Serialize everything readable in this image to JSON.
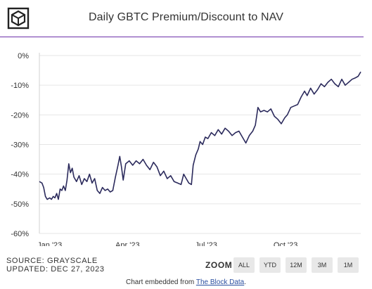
{
  "header": {
    "logo_icon": "the-block-cube-icon",
    "title": "Daily GBTC Premium/Discount to NAV"
  },
  "source": {
    "line1": "SOURCE: GRAYSCALE",
    "line2": "UPDATED: DEC 27, 2023"
  },
  "zoom": {
    "label": "ZOOM",
    "buttons": [
      "ALL",
      "YTD",
      "12M",
      "3M",
      "1M"
    ]
  },
  "footer": {
    "prefix": "Chart embedded from ",
    "link_text": "The Block Data",
    "suffix": "."
  },
  "colors": {
    "line": "#2b2a5c",
    "accent_rule": "#6b2fa8",
    "grid": "#e6e6e6"
  },
  "chart_data": {
    "type": "line",
    "title": "Daily GBTC Premium/Discount to NAV",
    "xlabel": "",
    "ylabel": "",
    "x_ticks": [
      "Jan '23",
      "Apr '23",
      "Jul '23",
      "Oct '23"
    ],
    "y_ticks": [
      "0%",
      "-10%",
      "-20%",
      "-30%",
      "-40%",
      "-50%",
      "-60%"
    ],
    "ylim": [
      -60,
      0
    ],
    "xlim": [
      "2022-12-20",
      "2023-12-27"
    ],
    "grid": true,
    "legend": "none",
    "series": [
      {
        "name": "",
        "points": [
          [
            "2022-12-20",
            -42.5
          ],
          [
            "2022-12-23",
            -43.0
          ],
          [
            "2022-12-25",
            -44.5
          ],
          [
            "2022-12-27",
            -47.5
          ],
          [
            "2022-12-29",
            -48.5
          ],
          [
            "2023-01-01",
            -48.0
          ],
          [
            "2023-01-03",
            -48.5
          ],
          [
            "2023-01-05",
            -47.5
          ],
          [
            "2023-01-07",
            -48.0
          ],
          [
            "2023-01-09",
            -46.5
          ],
          [
            "2023-01-11",
            -48.5
          ],
          [
            "2023-01-13",
            -45.0
          ],
          [
            "2023-01-15",
            -45.5
          ],
          [
            "2023-01-17",
            -44.0
          ],
          [
            "2023-01-19",
            -45.5
          ],
          [
            "2023-01-21",
            -42.0
          ],
          [
            "2023-01-23",
            -36.5
          ],
          [
            "2023-01-25",
            -39.5
          ],
          [
            "2023-01-27",
            -38.0
          ],
          [
            "2023-01-29",
            -41.0
          ],
          [
            "2023-02-01",
            -42.5
          ],
          [
            "2023-02-04",
            -40.5
          ],
          [
            "2023-02-07",
            -43.5
          ],
          [
            "2023-02-10",
            -41.5
          ],
          [
            "2023-02-13",
            -42.5
          ],
          [
            "2023-02-16",
            -40.0
          ],
          [
            "2023-02-19",
            -43.0
          ],
          [
            "2023-02-22",
            -41.5
          ],
          [
            "2023-02-25",
            -45.5
          ],
          [
            "2023-02-28",
            -46.5
          ],
          [
            "2023-03-03",
            -44.5
          ],
          [
            "2023-03-06",
            -45.5
          ],
          [
            "2023-03-09",
            -45.0
          ],
          [
            "2023-03-12",
            -46.0
          ],
          [
            "2023-03-15",
            -45.5
          ],
          [
            "2023-03-18",
            -41.0
          ],
          [
            "2023-03-21",
            -37.0
          ],
          [
            "2023-03-23",
            -34.0
          ],
          [
            "2023-03-25",
            -37.5
          ],
          [
            "2023-03-27",
            -42.0
          ],
          [
            "2023-03-30",
            -36.5
          ],
          [
            "2023-04-03",
            -35.5
          ],
          [
            "2023-04-07",
            -37.0
          ],
          [
            "2023-04-11",
            -35.5
          ],
          [
            "2023-04-15",
            -36.5
          ],
          [
            "2023-04-19",
            -35.0
          ],
          [
            "2023-04-23",
            -37.0
          ],
          [
            "2023-04-27",
            -38.5
          ],
          [
            "2023-05-01",
            -36.0
          ],
          [
            "2023-05-05",
            -37.5
          ],
          [
            "2023-05-09",
            -40.5
          ],
          [
            "2023-05-13",
            -39.0
          ],
          [
            "2023-05-17",
            -41.5
          ],
          [
            "2023-05-21",
            -40.5
          ],
          [
            "2023-05-25",
            -42.5
          ],
          [
            "2023-05-29",
            -43.0
          ],
          [
            "2023-06-02",
            -43.5
          ],
          [
            "2023-06-05",
            -40.0
          ],
          [
            "2023-06-08",
            -41.5
          ],
          [
            "2023-06-11",
            -43.0
          ],
          [
            "2023-06-14",
            -43.5
          ],
          [
            "2023-06-16",
            -37.0
          ],
          [
            "2023-06-19",
            -33.5
          ],
          [
            "2023-06-22",
            -31.5
          ],
          [
            "2023-06-24",
            -29.0
          ],
          [
            "2023-06-27",
            -30.0
          ],
          [
            "2023-06-30",
            -27.5
          ],
          [
            "2023-07-03",
            -28.0
          ],
          [
            "2023-07-07",
            -26.0
          ],
          [
            "2023-07-11",
            -27.0
          ],
          [
            "2023-07-15",
            -25.0
          ],
          [
            "2023-07-19",
            -26.5
          ],
          [
            "2023-07-23",
            -24.5
          ],
          [
            "2023-07-27",
            -25.5
          ],
          [
            "2023-07-31",
            -27.0
          ],
          [
            "2023-08-04",
            -26.0
          ],
          [
            "2023-08-08",
            -25.5
          ],
          [
            "2023-08-12",
            -27.5
          ],
          [
            "2023-08-16",
            -29.5
          ],
          [
            "2023-08-20",
            -27.0
          ],
          [
            "2023-08-24",
            -25.5
          ],
          [
            "2023-08-27",
            -23.5
          ],
          [
            "2023-08-30",
            -17.5
          ],
          [
            "2023-09-02",
            -19.0
          ],
          [
            "2023-09-06",
            -18.5
          ],
          [
            "2023-09-10",
            -19.0
          ],
          [
            "2023-09-14",
            -18.0
          ],
          [
            "2023-09-18",
            -20.5
          ],
          [
            "2023-09-22",
            -21.5
          ],
          [
            "2023-09-26",
            -23.0
          ],
          [
            "2023-09-30",
            -21.0
          ],
          [
            "2023-10-03",
            -20.0
          ],
          [
            "2023-10-07",
            -17.5
          ],
          [
            "2023-10-11",
            -17.0
          ],
          [
            "2023-10-15",
            -16.5
          ],
          [
            "2023-10-19",
            -14.0
          ],
          [
            "2023-10-23",
            -12.0
          ],
          [
            "2023-10-26",
            -13.5
          ],
          [
            "2023-10-30",
            -11.0
          ],
          [
            "2023-11-03",
            -13.0
          ],
          [
            "2023-11-07",
            -11.5
          ],
          [
            "2023-11-11",
            -9.5
          ],
          [
            "2023-11-15",
            -10.5
          ],
          [
            "2023-11-19",
            -9.0
          ],
          [
            "2023-11-23",
            -8.0
          ],
          [
            "2023-11-27",
            -9.5
          ],
          [
            "2023-12-01",
            -10.5
          ],
          [
            "2023-12-05",
            -8.0
          ],
          [
            "2023-12-09",
            -10.0
          ],
          [
            "2023-12-13",
            -9.0
          ],
          [
            "2023-12-17",
            -8.0
          ],
          [
            "2023-12-21",
            -7.5
          ],
          [
            "2023-12-24",
            -7.0
          ],
          [
            "2023-12-27",
            -5.5
          ]
        ]
      }
    ]
  }
}
